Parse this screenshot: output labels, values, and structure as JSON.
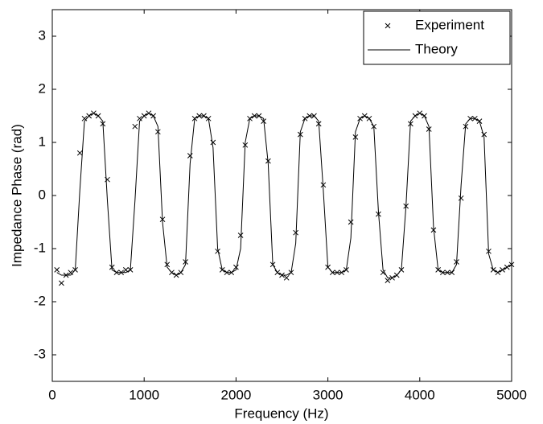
{
  "chart_data": {
    "type": "line",
    "xlabel": "Frequency (Hz)",
    "ylabel": "Impedance Phase (rad)",
    "x": [
      50,
      100,
      150,
      200,
      250,
      300,
      350,
      400,
      450,
      500,
      550,
      600,
      650,
      700,
      750,
      800,
      850,
      900,
      950,
      1000,
      1050,
      1100,
      1150,
      1200,
      1250,
      1300,
      1350,
      1400,
      1450,
      1500,
      1550,
      1600,
      1650,
      1700,
      1750,
      1800,
      1850,
      1900,
      1950,
      2000,
      2050,
      2100,
      2150,
      2200,
      2250,
      2300,
      2350,
      2400,
      2450,
      2500,
      2550,
      2600,
      2650,
      2700,
      2750,
      2800,
      2850,
      2900,
      2950,
      3000,
      3050,
      3100,
      3150,
      3200,
      3250,
      3300,
      3350,
      3400,
      3450,
      3500,
      3550,
      3600,
      3650,
      3700,
      3750,
      3800,
      3850,
      3900,
      3950,
      4000,
      4050,
      4100,
      4150,
      4200,
      4250,
      4300,
      4350,
      4400,
      4450,
      4500,
      4550,
      4600,
      4650,
      4700,
      4750,
      4800,
      4850,
      4900,
      4950,
      5000
    ],
    "series": [
      {
        "name": "Experiment",
        "color": "#000000",
        "mode": "markers",
        "values": [
          -1.4,
          -1.65,
          -1.5,
          -1.45,
          -1.4,
          0.8,
          1.45,
          1.5,
          1.55,
          1.5,
          1.35,
          0.3,
          -1.35,
          -1.45,
          -1.45,
          -1.4,
          -1.4,
          1.3,
          1.45,
          1.5,
          1.55,
          1.5,
          1.2,
          -0.45,
          -1.3,
          -1.45,
          -1.5,
          -1.45,
          -1.25,
          0.75,
          1.45,
          1.5,
          1.5,
          1.45,
          1.0,
          -1.05,
          -1.4,
          -1.45,
          -1.45,
          -1.35,
          -0.75,
          0.95,
          1.45,
          1.5,
          1.5,
          1.4,
          0.65,
          -1.3,
          -1.45,
          -1.5,
          -1.55,
          -1.45,
          -0.7,
          1.15,
          1.45,
          1.5,
          1.5,
          1.35,
          0.2,
          -1.35,
          -1.45,
          -1.45,
          -1.45,
          -1.4,
          -0.5,
          1.1,
          1.45,
          1.5,
          1.45,
          1.3,
          -0.35,
          -1.45,
          -1.6,
          -1.55,
          -1.5,
          -1.4,
          -0.2,
          1.35,
          1.5,
          1.55,
          1.5,
          1.25,
          -0.65,
          -1.4,
          -1.45,
          -1.45,
          -1.45,
          -1.25,
          -0.05,
          1.3,
          1.45,
          1.45,
          1.4,
          1.15,
          -1.05,
          -1.4,
          -1.45,
          -1.4,
          -1.35,
          -1.3
        ]
      },
      {
        "name": "Theory",
        "color": "#000000",
        "mode": "lines",
        "values": [
          -1.45,
          -1.5,
          -1.5,
          -1.5,
          -1.4,
          0.1,
          1.4,
          1.5,
          1.55,
          1.5,
          1.4,
          -0.1,
          -1.4,
          -1.45,
          -1.45,
          -1.45,
          -1.4,
          -0.1,
          1.4,
          1.5,
          1.55,
          1.5,
          1.3,
          -0.5,
          -1.35,
          -1.45,
          -1.5,
          -1.45,
          -1.3,
          0.6,
          1.45,
          1.5,
          1.5,
          1.45,
          0.9,
          -1.0,
          -1.4,
          -1.45,
          -1.45,
          -1.4,
          -1.0,
          1.0,
          1.45,
          1.5,
          1.5,
          1.45,
          0.6,
          -1.3,
          -1.45,
          -1.5,
          -1.5,
          -1.45,
          -0.9,
          1.2,
          1.45,
          1.5,
          1.5,
          1.4,
          0.1,
          -1.35,
          -1.45,
          -1.45,
          -1.45,
          -1.4,
          -0.8,
          1.2,
          1.45,
          1.5,
          1.45,
          1.3,
          -0.3,
          -1.4,
          -1.55,
          -1.55,
          -1.5,
          -1.4,
          -0.2,
          1.4,
          1.5,
          1.55,
          1.5,
          1.3,
          -0.6,
          -1.4,
          -1.45,
          -1.45,
          -1.45,
          -1.3,
          0.2,
          1.35,
          1.45,
          1.45,
          1.4,
          1.1,
          -1.1,
          -1.4,
          -1.45,
          -1.4,
          -1.35,
          -1.3
        ]
      }
    ],
    "xlim": [
      0,
      5000
    ],
    "xticks": [
      0,
      1000,
      2000,
      3000,
      4000,
      5000
    ],
    "ylim": [
      -3.5,
      3.5
    ],
    "yticks": [
      -3,
      -2,
      -1,
      0,
      1,
      2,
      3
    ],
    "grid": false,
    "legend": "upper right"
  }
}
